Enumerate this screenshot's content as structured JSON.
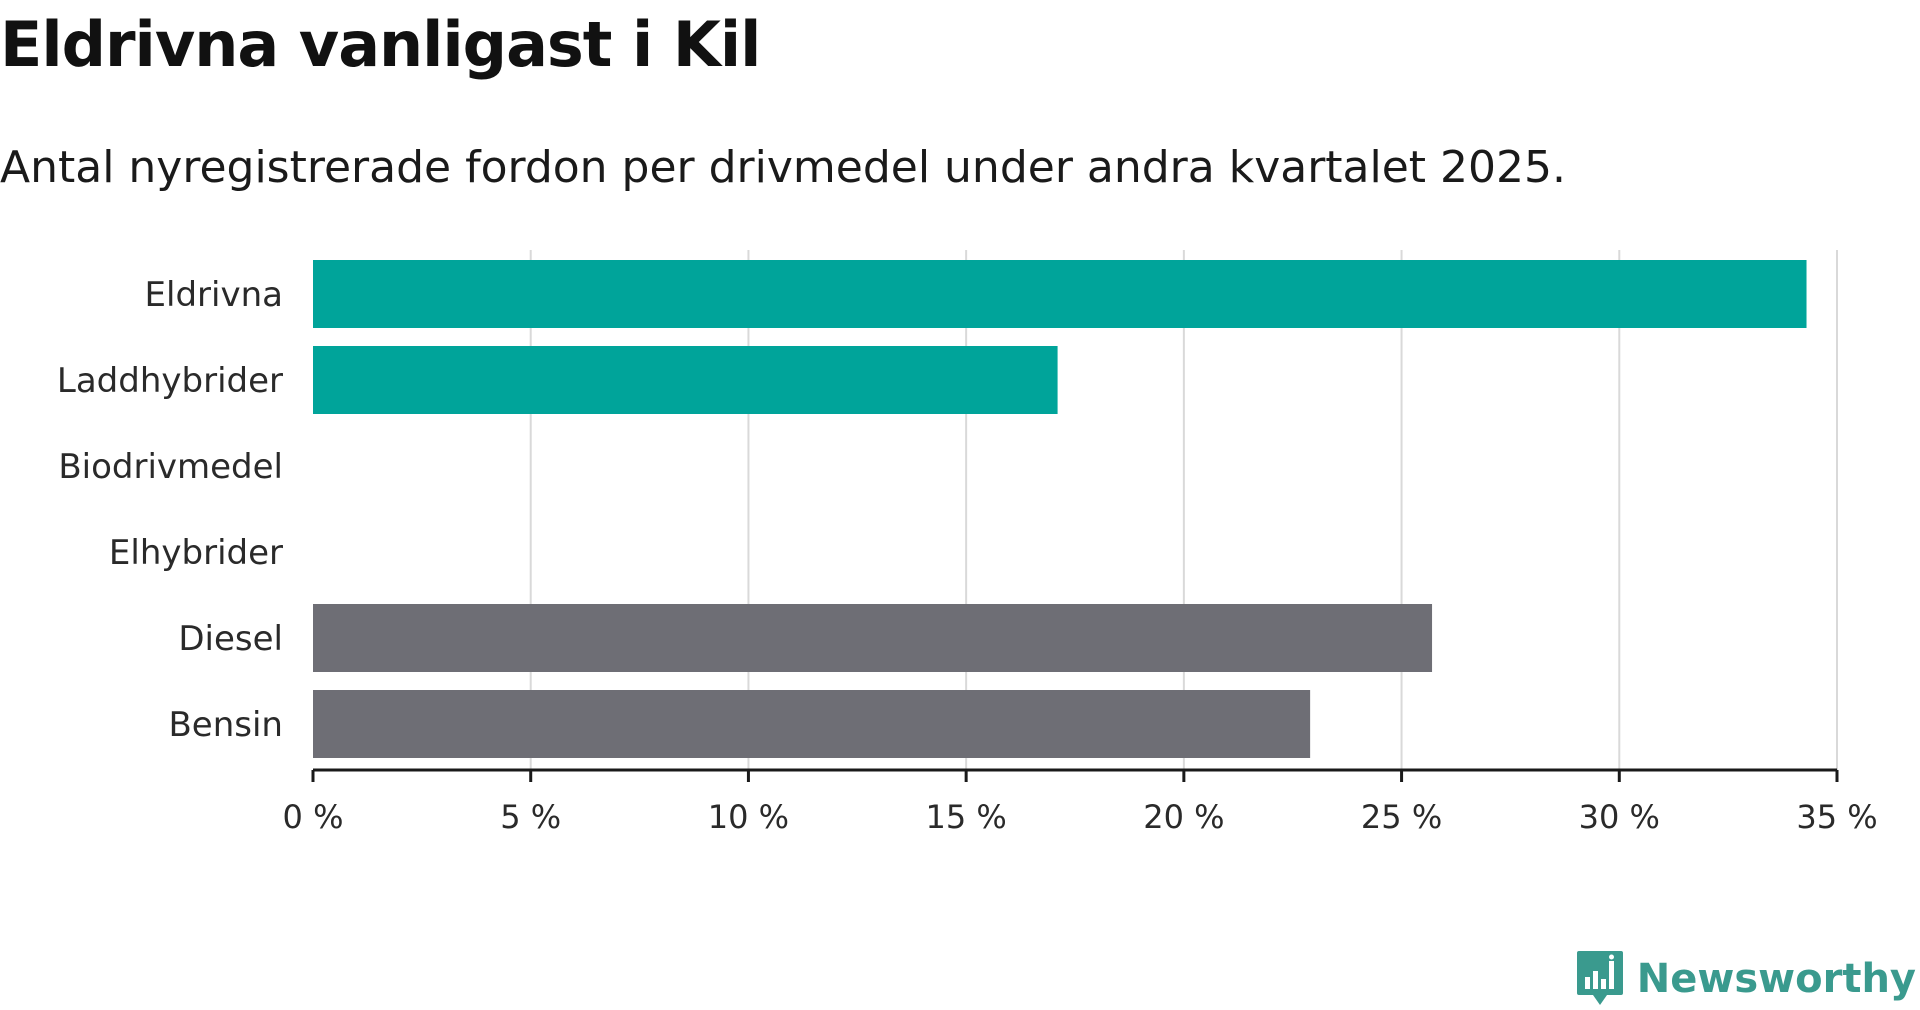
{
  "title": "Eldrivna vanligast i Kil",
  "subtitle": "Antal nyregistrerade fordon per drivmedel under andra kvartalet 2025.",
  "brand": {
    "name": "Newsworthy",
    "color": "#3a9a8e",
    "icon": "newsworthy-logo-icon"
  },
  "colors": {
    "highlight": "#00a49a",
    "other": "#6e6e75",
    "grid": "#d9d9d9",
    "axis": "#1a1a1a"
  },
  "chart_data": {
    "type": "bar",
    "orientation": "horizontal",
    "title": "Eldrivna vanligast i Kil",
    "subtitle": "Antal nyregistrerade fordon per drivmedel under andra kvartalet 2025.",
    "categories": [
      "Eldrivna",
      "Laddhybrider",
      "Biodrivmedel",
      "Elhybrider",
      "Diesel",
      "Bensin"
    ],
    "values": [
      34.3,
      17.1,
      0,
      0,
      25.7,
      22.9
    ],
    "bar_colors": [
      "#00a49a",
      "#00a49a",
      "#00a49a",
      "#00a49a",
      "#6e6e75",
      "#6e6e75"
    ],
    "unit": "%",
    "xlim": [
      0,
      35
    ],
    "xticks": [
      0,
      5,
      10,
      15,
      20,
      25,
      30,
      35
    ],
    "xtick_labels": [
      "0 %",
      "5 %",
      "10 %",
      "15 %",
      "20 %",
      "25 %",
      "30 %",
      "35 %"
    ],
    "xlabel": "",
    "ylabel": "",
    "grid": true,
    "legend": "none"
  }
}
